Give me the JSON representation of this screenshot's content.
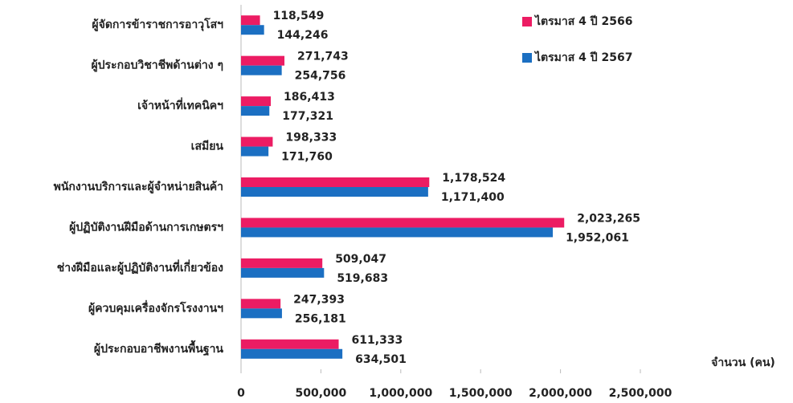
{
  "chart_data": {
    "type": "bar",
    "orientation": "horizontal",
    "categories": [
      "ผู้จัดการข้าราชการอาวุโสฯ",
      "ผู้ประกอบวิชาชีพด้านต่าง ๆ",
      "เจ้าหน้าที่เทคนิคฯ",
      "เสมียน",
      "พนักงานบริการและผู้จำหน่ายสินค้า",
      "ผู้ปฏิบัติงานฝีมือด้านการเกษตรฯ",
      "ช่างฝีมือและผู้ปฏิบัติงานที่เกี่ยวข้อง",
      "ผู้ควบคุมเครื่องจักรโรงงานฯ",
      "ผู้ประกอบอาชีพงานพื้นฐาน"
    ],
    "series": [
      {
        "name": "ไตรมาส 4 ปี 2566",
        "color": "#ec1c63",
        "values": [
          118549,
          271743,
          186413,
          198333,
          1178524,
          2023265,
          509047,
          247393,
          611333
        ],
        "value_labels": [
          "118,549",
          "271,743",
          "186,413",
          "198,333",
          "1,178,524",
          "2,023,265",
          "509,047",
          "247,393",
          "611,333"
        ]
      },
      {
        "name": "ไตรมาส 4 ปี 2567",
        "color": "#1b6fc2",
        "values": [
          144246,
          254756,
          177321,
          171760,
          1171400,
          1952061,
          519683,
          256181,
          634501
        ],
        "value_labels": [
          "144,246",
          "254,756",
          "177,321",
          "171,760",
          "1,171,400",
          "1,952,061",
          "519,683",
          "256,181",
          "634,501"
        ]
      }
    ],
    "xlabel": "จำนวน (คน)",
    "xlim": [
      0,
      2500000
    ],
    "xticks": [
      0,
      {
        "value": 500000,
        "label": "500,000"
      },
      {
        "value": 1000000,
        "label": "1,000,000"
      },
      {
        "value": 1500000,
        "label": "1,500,000"
      },
      {
        "value": 2000000,
        "label": "2,000,000"
      },
      {
        "value": 2500000,
        "label": "2,500,000"
      }
    ],
    "legend": "top-right"
  }
}
